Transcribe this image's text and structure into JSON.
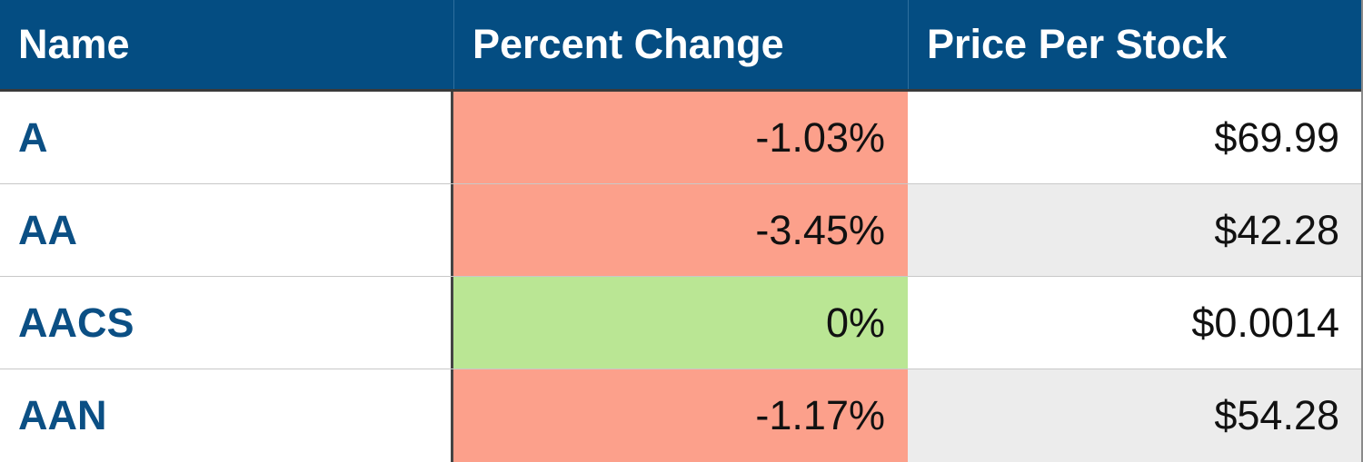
{
  "table": {
    "headers": {
      "name": "Name",
      "percent_change": "Percent Change",
      "price": "Price Per Stock"
    },
    "rows": [
      {
        "name": "A",
        "percent_change": "-1.03%",
        "price": "$69.99",
        "trend": "negative"
      },
      {
        "name": "AA",
        "percent_change": "-3.45%",
        "price": "$42.28",
        "trend": "negative"
      },
      {
        "name": "AACS",
        "percent_change": "0%",
        "price": "$0.0014",
        "trend": "positive"
      },
      {
        "name": "AAN",
        "percent_change": "-1.17%",
        "price": "$54.28",
        "trend": "negative"
      }
    ]
  },
  "colors": {
    "header_bg": "#044d82",
    "header_text": "#ffffff",
    "name_text": "#0b4f84",
    "negative_bg": "#fca08b",
    "positive_bg": "#bae694",
    "alt_row_bg": "#ececec"
  }
}
